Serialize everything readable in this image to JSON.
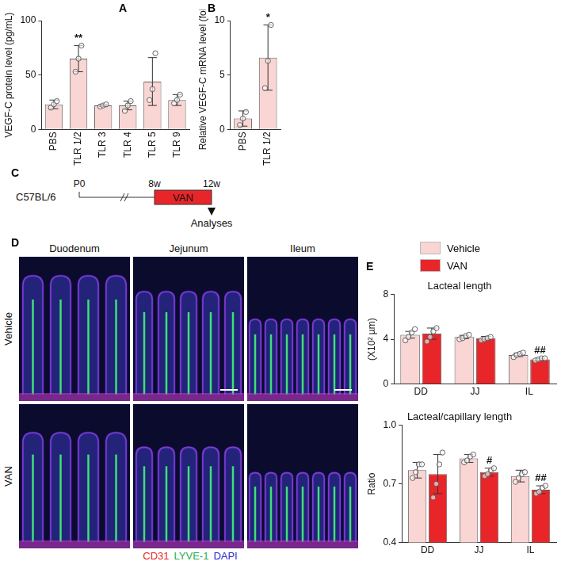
{
  "panel_labels": [
    "A",
    "B",
    "C",
    "D",
    "E"
  ],
  "chart_data": [
    {
      "type": "bar",
      "y_label": "VEGF-C protein level (pg/mL)",
      "categories": [
        "PBS",
        "TLR 1/2",
        "TLR 3",
        "TLR 4",
        "TLR 5",
        "TLR 9"
      ],
      "values": [
        23,
        65,
        22,
        22,
        44,
        27
      ],
      "errors": [
        4,
        12,
        1,
        4,
        22,
        5
      ],
      "points": [
        [
          20,
          23,
          26
        ],
        [
          53,
          65,
          77
        ],
        [
          21,
          22,
          23
        ],
        [
          17,
          22,
          26
        ],
        [
          27,
          37,
          70
        ],
        [
          24,
          27,
          32
        ]
      ],
      "color": "#f9d5d3",
      "ylim": [
        0,
        100
      ],
      "yticks": [
        0,
        50,
        100
      ],
      "grid": false,
      "annotations": [
        {
          "category": "TLR 1/2",
          "text": "**"
        }
      ]
    },
    {
      "type": "bar",
      "y_label": "Relative VEGF-C mRNA level (fold)",
      "categories": [
        "PBS",
        "TLR 1/2"
      ],
      "values": [
        1.0,
        6.6
      ],
      "errors": [
        0.7,
        3
      ],
      "points": [
        [
          0.4,
          1.0,
          1.6
        ],
        [
          3.8,
          6.3,
          9.6
        ]
      ],
      "color": "#f9d5d3",
      "ylim": [
        0,
        10
      ],
      "yticks": [
        0,
        5,
        10
      ],
      "grid": false,
      "annotations": [
        {
          "category": "TLR 1/2",
          "text": "*"
        }
      ]
    },
    {
      "type": "bar",
      "title": "Lacteal length",
      "y_label": "(X10² µm)",
      "categories": [
        "DD",
        "JJ",
        "IL"
      ],
      "series": [
        {
          "name": "Vehicle",
          "color": "#f9d5d3",
          "values": [
            4.4,
            4.2,
            2.6
          ],
          "errors": [
            0.3,
            0.15,
            0.15
          ],
          "points": [
            [
              3.9,
              4.2,
              4.6,
              4.9
            ],
            [
              4.0,
              4.1,
              4.3,
              4.4
            ],
            [
              2.4,
              2.6,
              2.7,
              2.8
            ]
          ]
        },
        {
          "name": "VAN",
          "color": "#e8262a",
          "values": [
            4.5,
            4.1,
            2.2
          ],
          "errors": [
            0.5,
            0.15,
            0.1
          ],
          "points": [
            [
              3.8,
              4.2,
              4.7,
              5.0
            ],
            [
              3.9,
              4.0,
              4.1,
              4.2
            ],
            [
              2.1,
              2.2,
              2.3,
              2.3
            ]
          ]
        }
      ],
      "ylim": [
        0,
        8
      ],
      "yticks": [
        0,
        4,
        8
      ],
      "grid": false,
      "annotations": [
        {
          "series": "VAN",
          "category": "IL",
          "text": "##"
        }
      ]
    },
    {
      "type": "bar",
      "title": "Lacteal/capillary length",
      "y_label": "Ratio",
      "categories": [
        "DD",
        "JJ",
        "IL"
      ],
      "series": [
        {
          "name": "Vehicle",
          "color": "#f9d5d3",
          "values": [
            0.77,
            0.83,
            0.74
          ],
          "errors": [
            0.04,
            0.02,
            0.03
          ],
          "points": [
            [
              0.73,
              0.76,
              0.8,
              0.8
            ],
            [
              0.81,
              0.82,
              0.84,
              0.85
            ],
            [
              0.71,
              0.73,
              0.75,
              0.76
            ]
          ]
        },
        {
          "name": "VAN",
          "color": "#e8262a",
          "values": [
            0.75,
            0.76,
            0.67
          ],
          "errors": [
            0.1,
            0.02,
            0.02
          ],
          "points": [
            [
              0.63,
              0.7,
              0.8,
              0.86
            ],
            [
              0.74,
              0.75,
              0.77,
              0.78
            ],
            [
              0.65,
              0.66,
              0.68,
              0.69
            ]
          ]
        }
      ],
      "ylim": [
        0.4,
        1
      ],
      "yticks": [
        0.4,
        0.7,
        {
          "value": 1,
          "label": "1.0"
        }
      ],
      "grid": false,
      "annotations": [
        {
          "series": "VAN",
          "category": "JJ",
          "text": "#"
        },
        {
          "series": "VAN",
          "category": "IL",
          "text": "##"
        }
      ]
    }
  ],
  "timeline": {
    "strain": "C57BL/6",
    "marks": [
      "P0",
      "8w",
      "12w"
    ],
    "treatment": "VAN",
    "treatment_color": "#e8262a",
    "event": "Analyses"
  },
  "images": {
    "columns": [
      "Duodenum",
      "Jejunum",
      "Ileum"
    ],
    "rows": [
      "Vehicle",
      "VAN"
    ],
    "stain_legend": [
      {
        "text": "CD31",
        "color": "#e8262a"
      },
      {
        "text": "LYVE-1",
        "color": "#22b04a"
      },
      {
        "text": "DAPI",
        "color": "#2b2bd6"
      }
    ]
  }
}
